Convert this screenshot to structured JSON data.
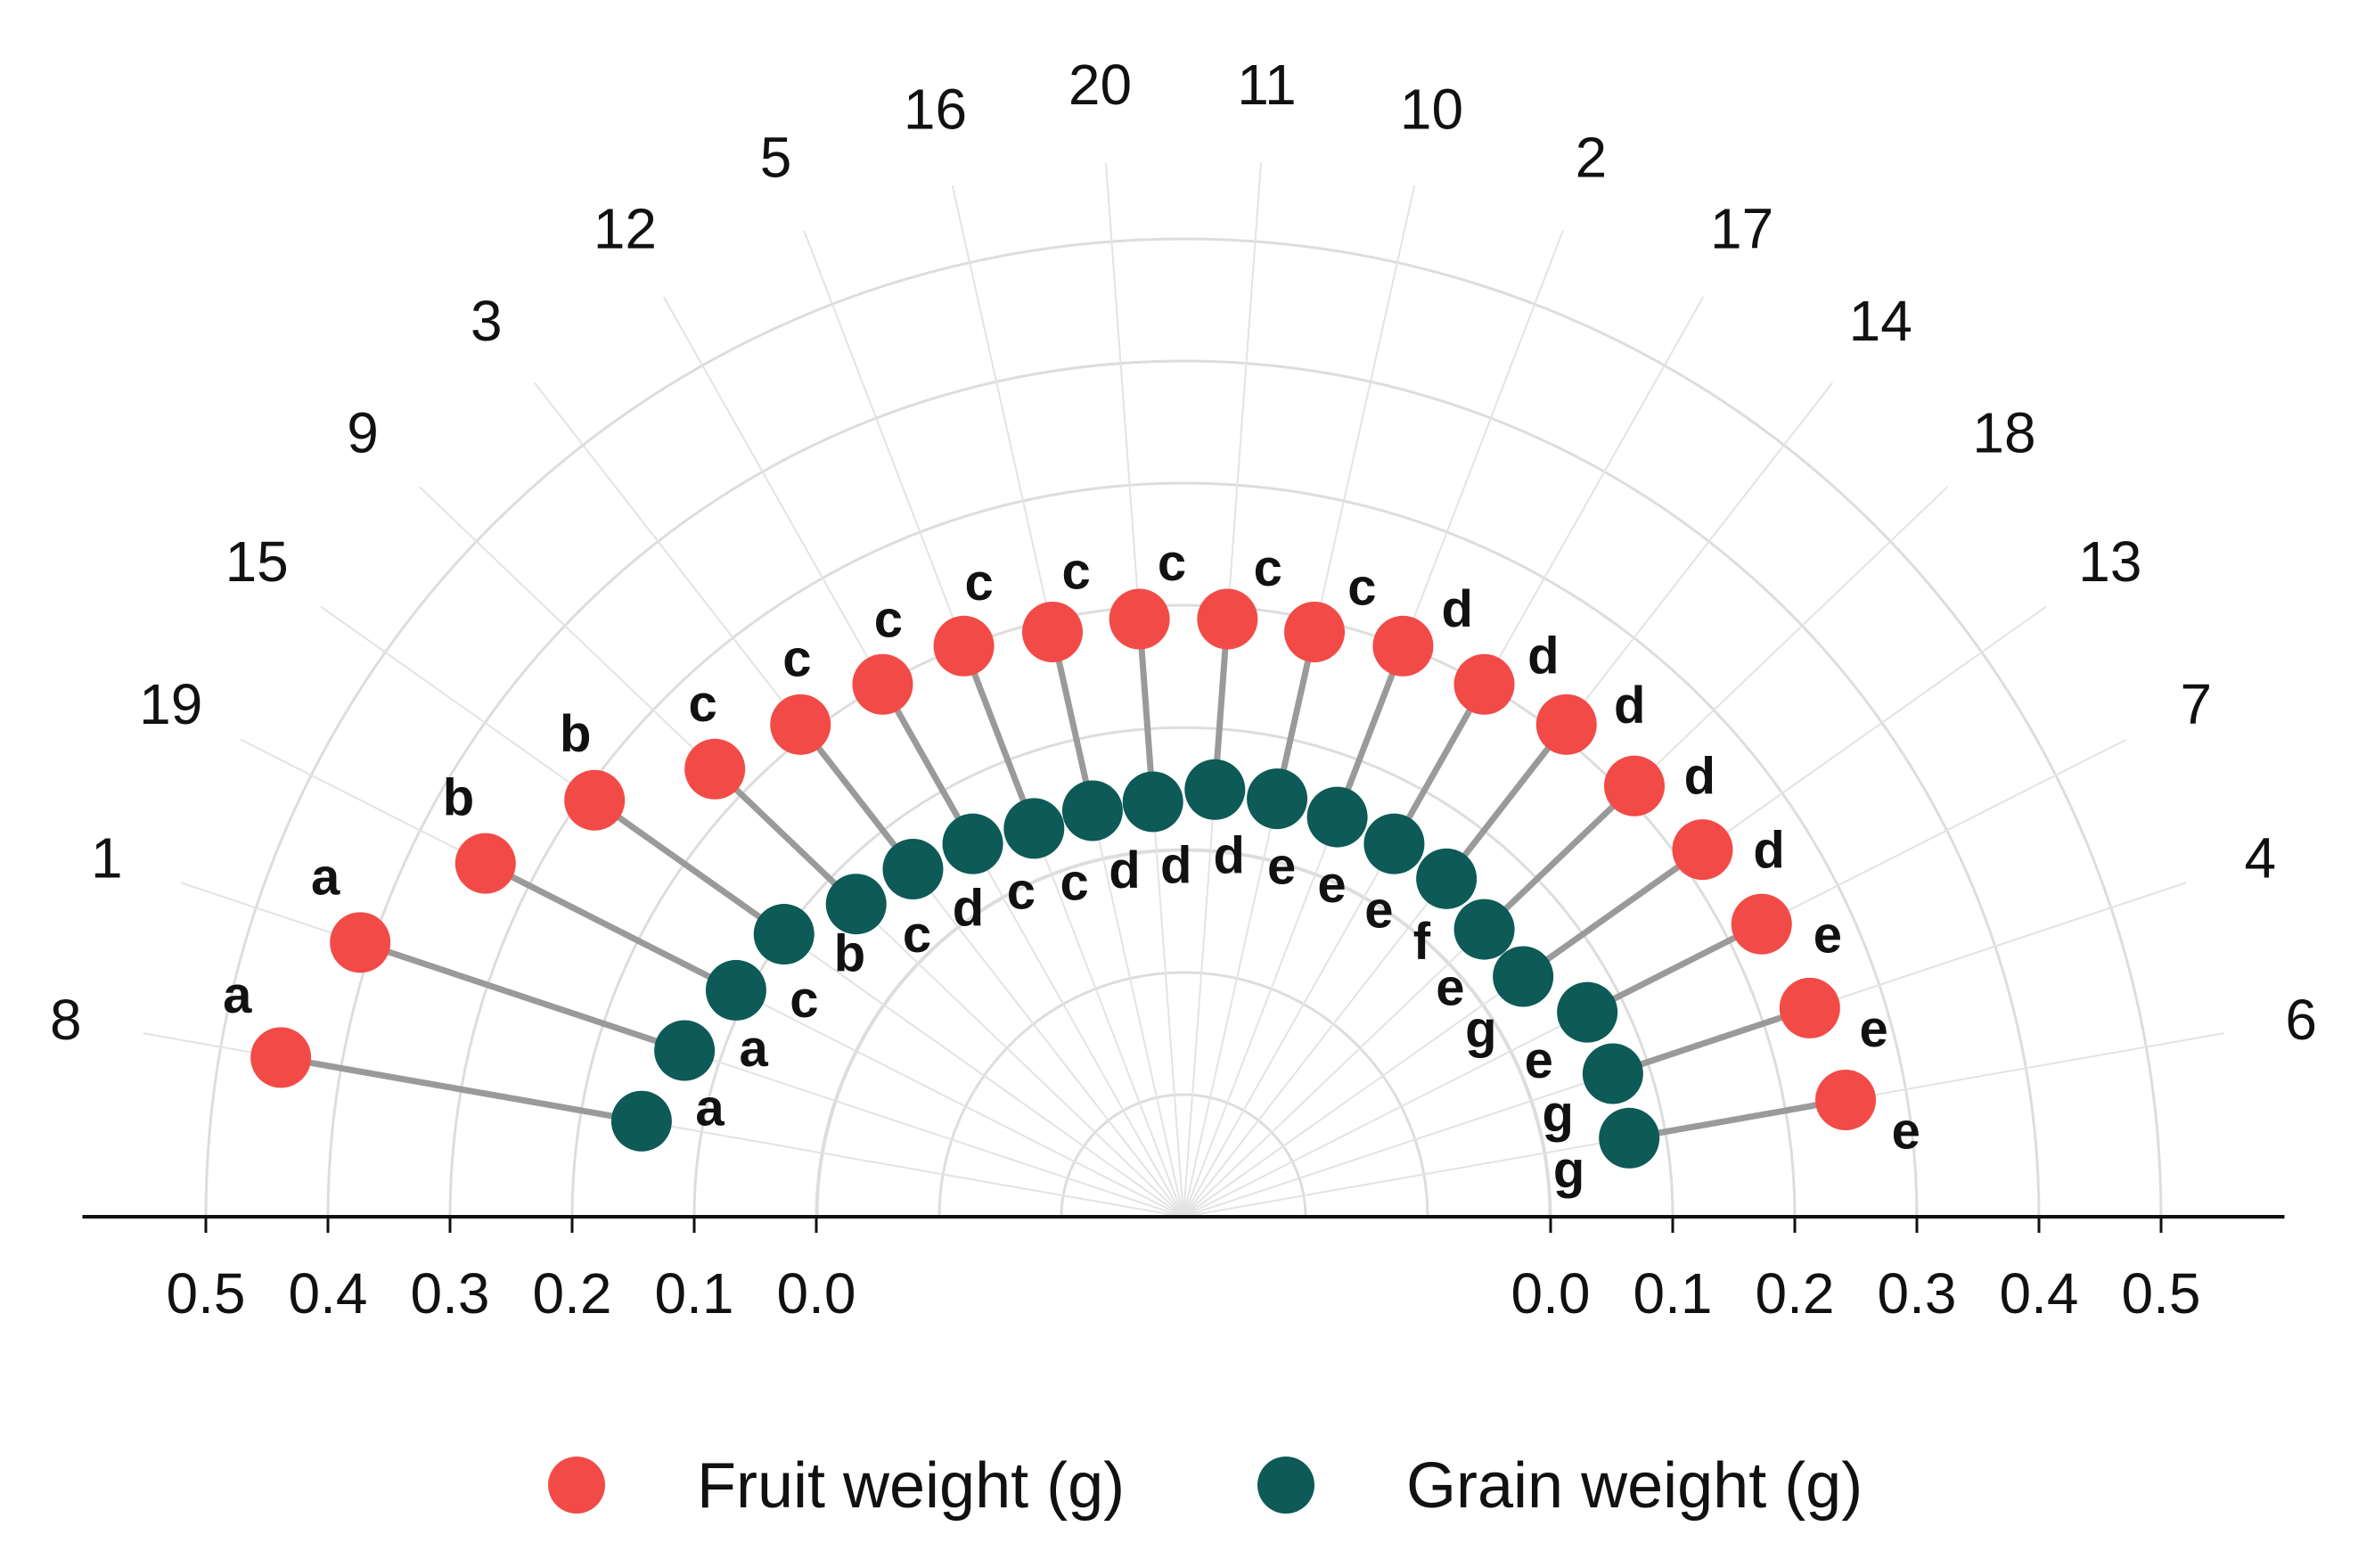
{
  "chart_data": {
    "type": "radial-lollipop",
    "categories": [
      "8",
      "1",
      "19",
      "15",
      "9",
      "3",
      "12",
      "5",
      "16",
      "20",
      "11",
      "10",
      "2",
      "17",
      "14",
      "18",
      "13",
      "7",
      "4",
      "6"
    ],
    "series": [
      {
        "name": "Fruit weight (g)",
        "color": "#f24b47",
        "values": [
          0.45,
          0.41,
          0.34,
          0.29,
          0.23,
          0.21,
          0.2,
          0.2,
          0.19,
          0.19,
          0.19,
          0.19,
          0.2,
          0.2,
          0.21,
          0.21,
          0.22,
          0.23,
          0.24,
          0.25
        ],
        "letters": [
          "a",
          "a",
          "b",
          "b",
          "c",
          "c",
          "c",
          "c",
          "c",
          "c",
          "c",
          "c",
          "d",
          "d",
          "d",
          "d",
          "d",
          "e",
          "e",
          "e"
        ]
      },
      {
        "name": "Grain weight (g)",
        "color": "#0d5a57",
        "values": [
          0.15,
          0.13,
          0.11,
          0.1,
          0.07,
          0.06,
          0.05,
          0.04,
          0.04,
          0.04,
          0.05,
          0.05,
          0.05,
          0.05,
          0.05,
          0.04,
          0.04,
          0.07,
          0.07,
          0.07
        ],
        "letters": [
          "a",
          "a",
          "c",
          "b",
          "c",
          "d",
          "c",
          "c",
          "d",
          "d",
          "d",
          "e",
          "e",
          "e",
          "f",
          "e",
          "g",
          "e",
          "g",
          "g"
        ]
      }
    ],
    "axis_ticks": [
      "0.5",
      "0.4",
      "0.3",
      "0.2",
      "0.1",
      "0.0"
    ],
    "axis_ticks_right": [
      "0.0",
      "0.1",
      "0.2",
      "0.3",
      "0.4",
      "0.5"
    ],
    "legend_position": "bottom",
    "grid": true
  }
}
